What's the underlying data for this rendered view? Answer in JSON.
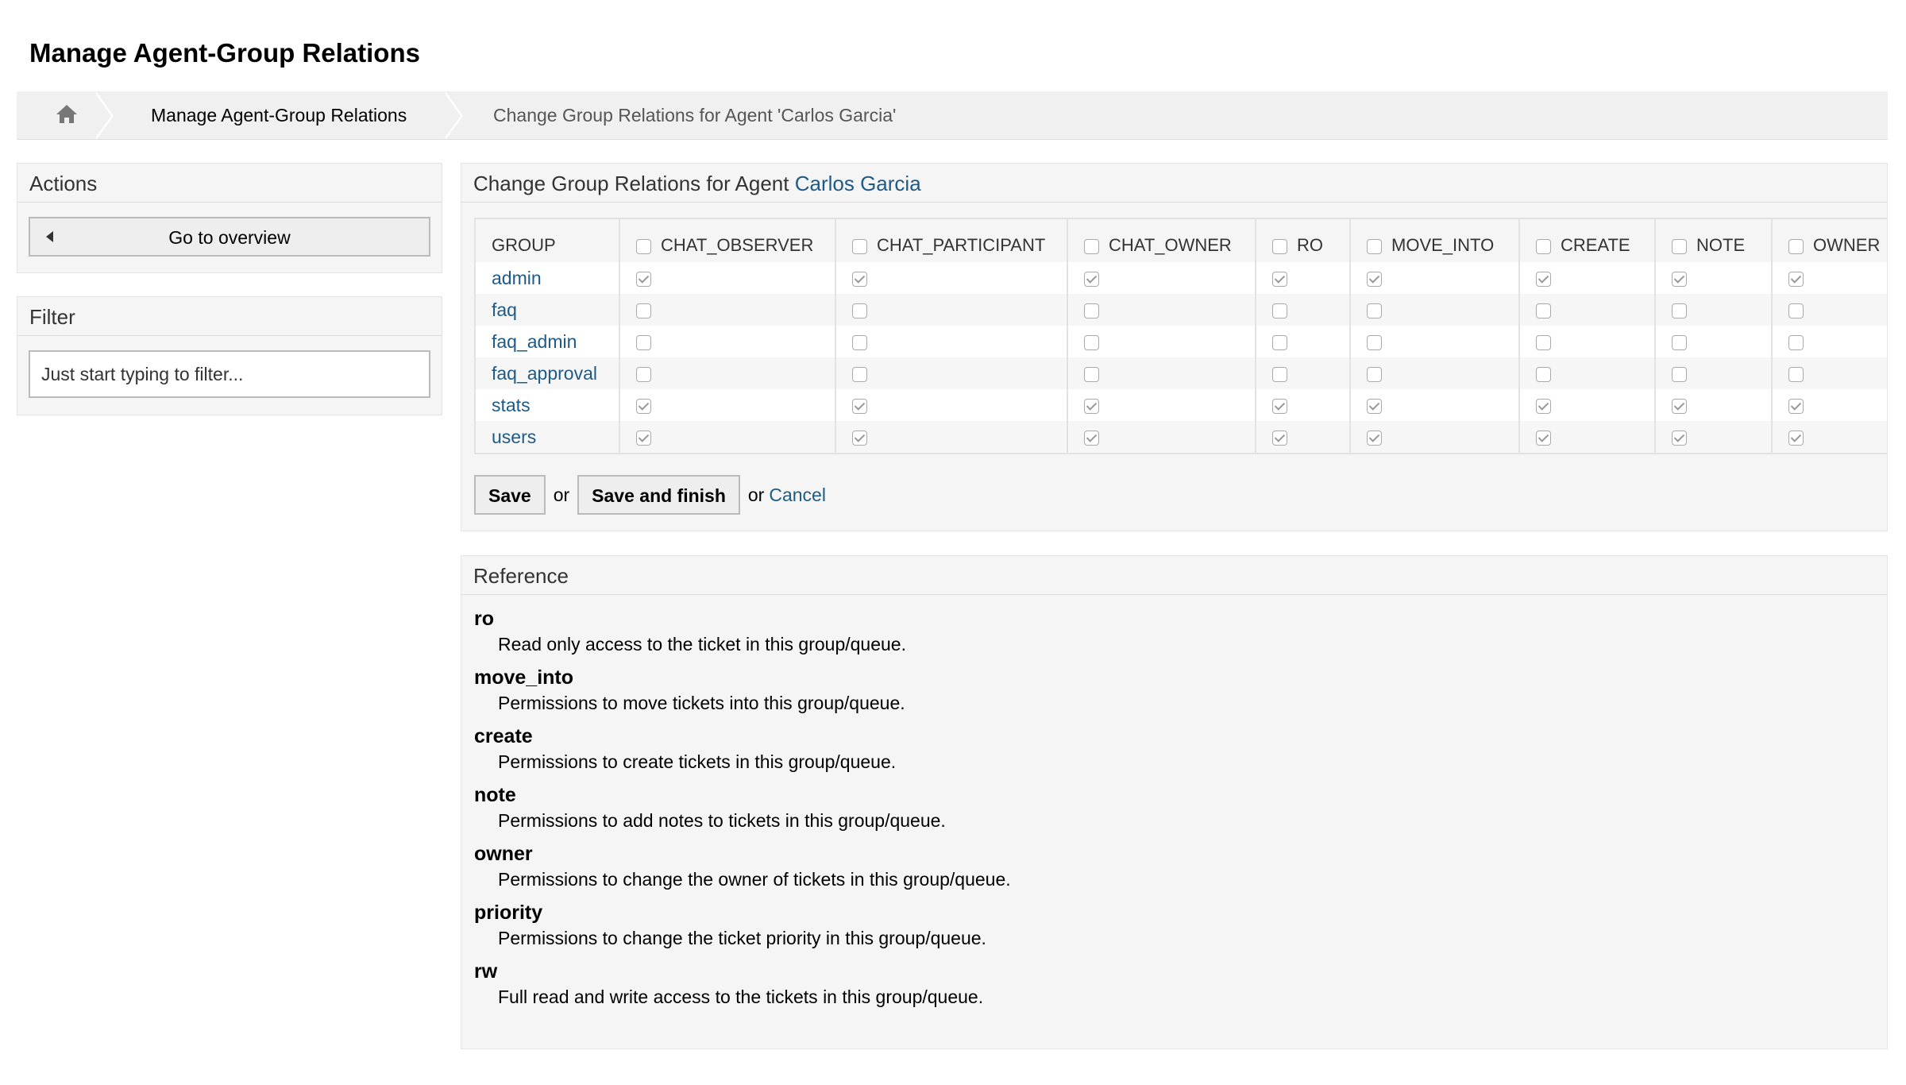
{
  "header": {
    "title": "Manage Agent-Group Relations"
  },
  "breadcrumb": {
    "items": [
      "Manage Agent-Group Relations",
      "Change Group Relations for Agent 'Carlos Garcia'"
    ]
  },
  "sidebar": {
    "actions": {
      "title": "Actions",
      "button": "Go to overview"
    },
    "filter": {
      "title": "Filter",
      "placeholder": "Just start typing to filter..."
    }
  },
  "main": {
    "title": "Change Group Relations for Agent",
    "agent": "Carlos Garcia"
  },
  "table": {
    "columns": [
      "GROUP",
      "CHAT_OBSERVER",
      "CHAT_PARTICIPANT",
      "CHAT_OWNER",
      "RO",
      "MOVE_INTO",
      "CREATE",
      "NOTE",
      "OWNER"
    ],
    "rows": [
      {
        "group": "admin",
        "checked": [
          true,
          true,
          true,
          true,
          true,
          true,
          true,
          true
        ]
      },
      {
        "group": "faq",
        "checked": [
          false,
          false,
          false,
          false,
          false,
          false,
          false,
          false
        ]
      },
      {
        "group": "faq_admin",
        "checked": [
          false,
          false,
          false,
          false,
          false,
          false,
          false,
          false
        ]
      },
      {
        "group": "faq_approval",
        "checked": [
          false,
          false,
          false,
          false,
          false,
          false,
          false,
          false
        ]
      },
      {
        "group": "stats",
        "checked": [
          true,
          true,
          true,
          true,
          true,
          true,
          true,
          true
        ]
      },
      {
        "group": "users",
        "checked": [
          true,
          true,
          true,
          true,
          true,
          true,
          true,
          true
        ]
      }
    ]
  },
  "form": {
    "save": "Save",
    "separator": "or",
    "save_and_finish": "Save and finish",
    "cancel": "Cancel"
  },
  "reference": {
    "title": "Reference",
    "items": [
      {
        "term": "ro",
        "description": "Read only access to the ticket in this group/queue."
      },
      {
        "term": "move_into",
        "description": "Permissions to move tickets into this group/queue."
      },
      {
        "term": "create",
        "description": "Permissions to create tickets in this group/queue."
      },
      {
        "term": "note",
        "description": "Permissions to add notes to tickets in this group/queue."
      },
      {
        "term": "owner",
        "description": "Permissions to change the owner of tickets in this group/queue."
      },
      {
        "term": "priority",
        "description": "Permissions to change the ticket priority in this group/queue."
      },
      {
        "term": "rw",
        "description": "Full read and write access to the tickets in this group/queue."
      }
    ]
  }
}
